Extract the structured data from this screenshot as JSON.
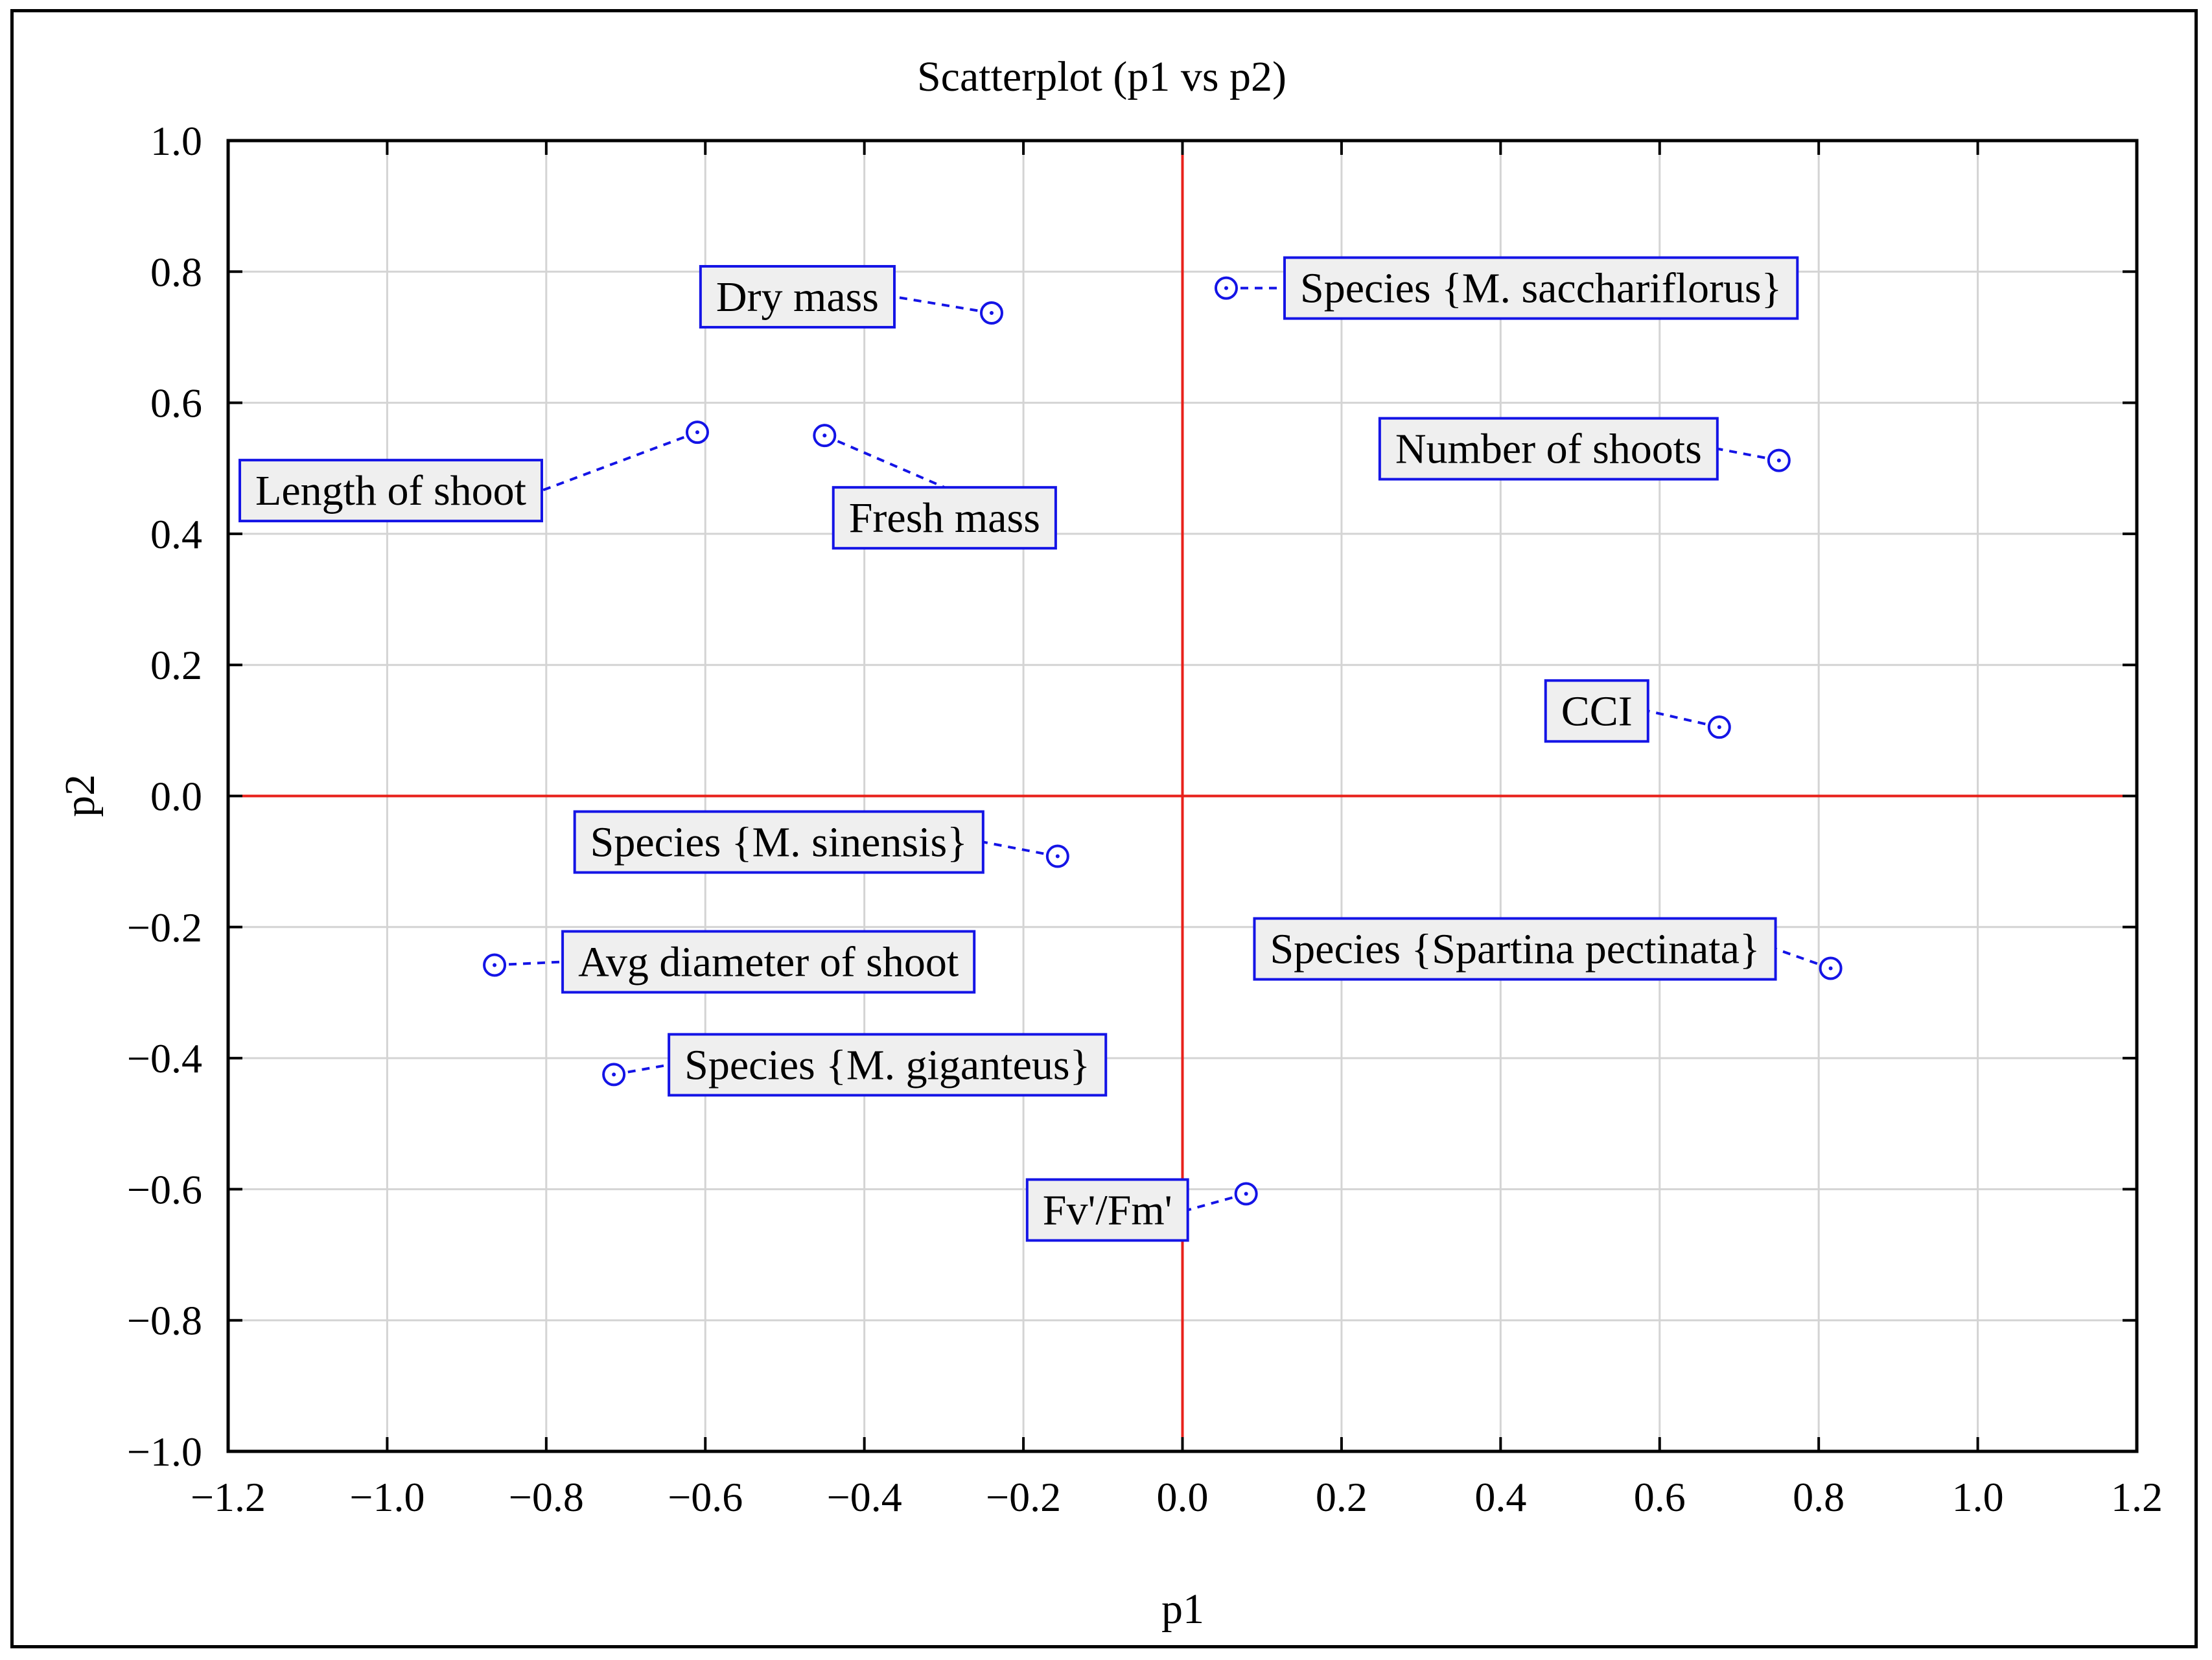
{
  "chart_data": {
    "type": "scatter",
    "title": "Scatterplot (p1 vs p2)",
    "xlabel": "p1",
    "ylabel": "p2",
    "xlim": [
      -1.2,
      1.2
    ],
    "ylim": [
      -1.0,
      1.0
    ],
    "xticks": [
      -1.2,
      -1.0,
      -0.8,
      -0.6,
      -0.4,
      -0.2,
      0.0,
      0.2,
      0.4,
      0.6,
      0.8,
      1.0,
      1.2
    ],
    "yticks": [
      1.0,
      0.8,
      0.6,
      0.4,
      0.2,
      0.0,
      -0.2,
      -0.4,
      -0.6,
      -0.8,
      -1.0
    ],
    "xtick_labels": [
      "−1.2",
      "−1.0",
      "−0.8",
      "−0.6",
      "−0.4",
      "−0.2",
      "0.0",
      "0.2",
      "0.4",
      "0.6",
      "0.8",
      "1.0",
      "1.2"
    ],
    "ytick_labels": [
      "1.0",
      "0.8",
      "0.6",
      "0.4",
      "0.2",
      "0.0",
      "−0.2",
      "−0.4",
      "−0.6",
      "−0.8",
      "−1.0"
    ],
    "grid": true,
    "reference_lines": {
      "x": 0.0,
      "y": 0.0,
      "color": "#e8201a"
    },
    "colors": {
      "points": "#1414e6",
      "label_fill": "#efefef",
      "grid": "#d4d4d4"
    },
    "points": [
      {
        "label": "Dry mass",
        "x": -0.24,
        "y": 0.737
      },
      {
        "label": "Species {M. sacchariflorus}",
        "x": 0.055,
        "y": 0.775
      },
      {
        "label": "Length of shoot",
        "x": -0.61,
        "y": 0.555
      },
      {
        "label": "Fresh mass",
        "x": -0.45,
        "y": 0.55
      },
      {
        "label": "Number of shoots",
        "x": 0.75,
        "y": 0.512
      },
      {
        "label": "CCI",
        "x": 0.675,
        "y": 0.105
      },
      {
        "label": "Species {M. sinensis}",
        "x": -0.157,
        "y": -0.092
      },
      {
        "label": "Avg diameter of shoot",
        "x": -0.865,
        "y": -0.258
      },
      {
        "label": "Species {Spartina pectinata}",
        "x": 0.815,
        "y": -0.263
      },
      {
        "label": "Species {M. giganteus}",
        "x": -0.715,
        "y": -0.425
      },
      {
        "label": "Fv'/Fm'",
        "x": 0.08,
        "y": -0.607
      }
    ]
  }
}
